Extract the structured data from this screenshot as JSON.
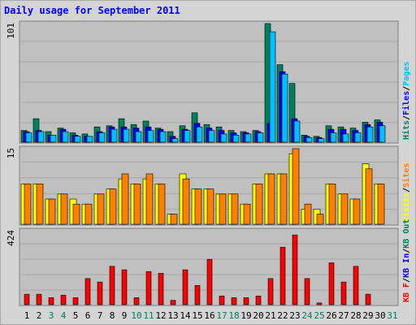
{
  "title": "Daily usage for September 2011",
  "colors": {
    "hits": "#00805c",
    "files": "#0000ff",
    "pages": "#00c0ff",
    "visits": "#ffff00",
    "sites": "#ff8000",
    "kbin": "#ff0000",
    "kbout": "#00805c",
    "title": "#0000ff",
    "plot_bg": "#c0c0c0",
    "outer_bg": "#d4d4d4",
    "weekend_label": "#00805c",
    "weekday_label": "#000000"
  },
  "days": [
    "1",
    "2",
    "3",
    "4",
    "5",
    "6",
    "7",
    "8",
    "9",
    "10",
    "11",
    "12",
    "13",
    "14",
    "15",
    "16",
    "17",
    "18",
    "19",
    "20",
    "21",
    "22",
    "23",
    "24",
    "25",
    "26",
    "27",
    "28",
    "29",
    "30",
    "31"
  ],
  "weekend_days": [
    3,
    4,
    10,
    11,
    17,
    18,
    24,
    25,
    31
  ],
  "chart_data": [
    {
      "type": "bar",
      "name": "hits-files-pages",
      "ymax_label": "101",
      "ymax": 101,
      "legend": [
        {
          "label": "Hits",
          "color": "#00805c"
        },
        {
          "label": "/",
          "color": "#000000"
        },
        {
          "label": "Files",
          "color": "#0000ff"
        },
        {
          "label": "/",
          "color": "#000000"
        },
        {
          "label": "Pages",
          "color": "#00c0ff"
        }
      ],
      "series": [
        {
          "name": "Hits",
          "values": [
            10,
            20,
            9,
            12,
            8,
            7,
            13,
            14,
            20,
            15,
            18,
            12,
            9,
            14,
            25,
            15,
            13,
            10,
            9,
            10,
            101,
            66,
            50,
            6,
            5,
            14,
            13,
            12,
            17,
            19,
            0
          ]
        },
        {
          "name": "Files",
          "values": [
            9,
            10,
            6,
            11,
            6,
            5,
            9,
            13,
            13,
            12,
            13,
            11,
            5,
            11,
            16,
            12,
            10,
            8,
            8,
            9,
            16,
            60,
            20,
            5,
            4,
            11,
            11,
            10,
            15,
            17,
            0
          ]
        },
        {
          "name": "Pages",
          "values": [
            8,
            9,
            6,
            9,
            5,
            5,
            8,
            11,
            11,
            9,
            10,
            9,
            3,
            10,
            13,
            10,
            7,
            6,
            7,
            8,
            94,
            58,
            18,
            4,
            3,
            8,
            7,
            8,
            13,
            14,
            0
          ]
        }
      ]
    },
    {
      "type": "bar",
      "name": "visits-sites",
      "ymax_label": "15",
      "ymax": 15,
      "legend": [
        {
          "label": "Visits",
          "color": "#ffff00"
        },
        {
          "label": "/",
          "color": "#000000"
        },
        {
          "label": "Sites",
          "color": "#ff8000"
        }
      ],
      "series": [
        {
          "name": "Visits",
          "values": [
            8,
            8,
            5,
            6,
            5,
            4,
            6,
            7,
            9,
            8,
            9,
            8,
            2,
            10,
            7,
            7,
            6,
            6,
            4,
            8,
            10,
            10,
            14,
            3,
            3,
            8,
            6,
            5,
            12,
            8,
            0
          ]
        },
        {
          "name": "Sites",
          "values": [
            8,
            8,
            5,
            6,
            4,
            4,
            6,
            7,
            10,
            8,
            10,
            8,
            2,
            9,
            7,
            7,
            6,
            6,
            4,
            8,
            10,
            10,
            15,
            4,
            2,
            8,
            6,
            5,
            11,
            8,
            0
          ]
        }
      ]
    },
    {
      "type": "bar",
      "name": "kbin-kbout",
      "ymax_label": "424",
      "ymax": 424,
      "legend": [
        {
          "label": "KB F",
          "color": "#ff0000"
        },
        {
          "label": "/",
          "color": "#000000"
        },
        {
          "label": "KB In",
          "color": "#0000ff"
        },
        {
          "label": "/",
          "color": "#000000"
        },
        {
          "label": "KB Out",
          "color": "#00805c"
        }
      ],
      "series": [
        {
          "name": "KB F",
          "values": [
            60,
            60,
            40,
            55,
            40,
            150,
            130,
            220,
            200,
            40,
            190,
            180,
            25,
            200,
            110,
            260,
            50,
            40,
            40,
            50,
            150,
            330,
            400,
            150,
            10,
            240,
            130,
            220,
            60,
            0,
            0
          ]
        }
      ]
    }
  ]
}
